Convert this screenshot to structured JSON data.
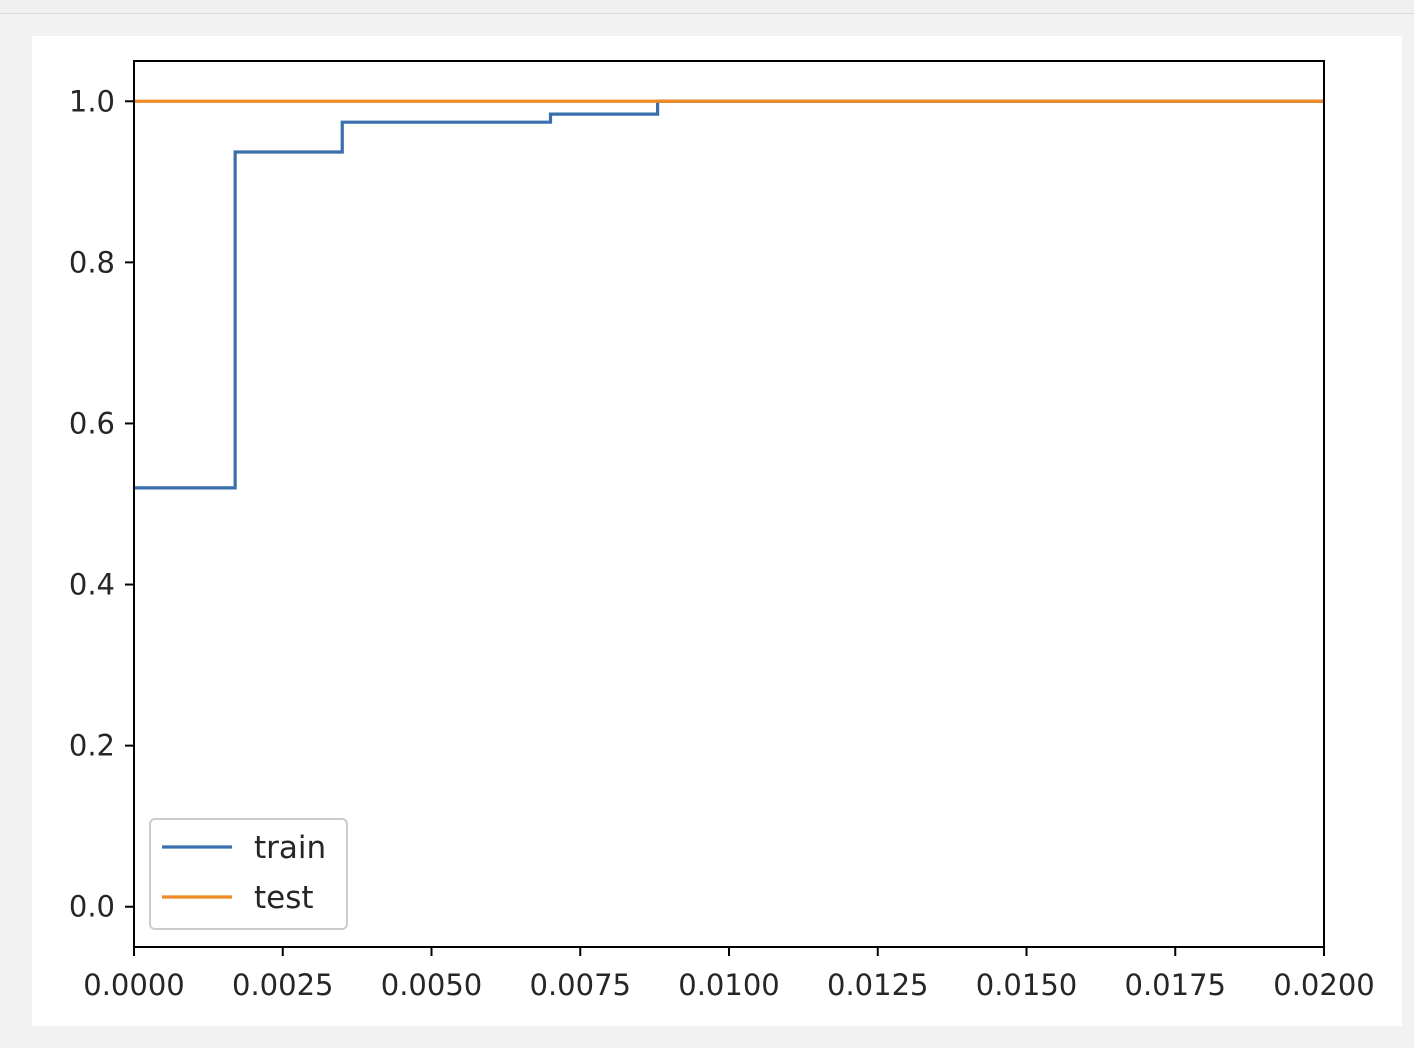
{
  "chart_data": {
    "type": "line",
    "title": "",
    "xlabel": "",
    "ylabel": "",
    "xlim": [
      0,
      0.02
    ],
    "ylim": [
      -0.05,
      1.05
    ],
    "xticks": [
      0.0,
      0.0025,
      0.005,
      0.0075,
      0.01,
      0.0125,
      0.015,
      0.0175,
      0.02
    ],
    "xtick_labels": [
      "0.0000",
      "0.0025",
      "0.0050",
      "0.0075",
      "0.0100",
      "0.0125",
      "0.0150",
      "0.0175",
      "0.0200"
    ],
    "yticks": [
      0.0,
      0.2,
      0.4,
      0.6,
      0.8,
      1.0
    ],
    "ytick_labels": [
      "0.0",
      "0.2",
      "0.4",
      "0.6",
      "0.8",
      "1.0"
    ],
    "grid": false,
    "legend_position": "lower-left",
    "series": [
      {
        "name": "train",
        "color": "#3a6fae",
        "step": true,
        "x": [
          0.0,
          0.0017,
          0.0017,
          0.0035,
          0.0035,
          0.007,
          0.007,
          0.0088,
          0.0088,
          0.02
        ],
        "y": [
          0.52,
          0.52,
          0.937,
          0.937,
          0.974,
          0.974,
          0.984,
          0.984,
          1.0,
          1.0
        ]
      },
      {
        "name": "test",
        "color": "#f08a24",
        "step": false,
        "x": [
          0.0,
          0.02
        ],
        "y": [
          1.0,
          1.0
        ]
      }
    ]
  }
}
